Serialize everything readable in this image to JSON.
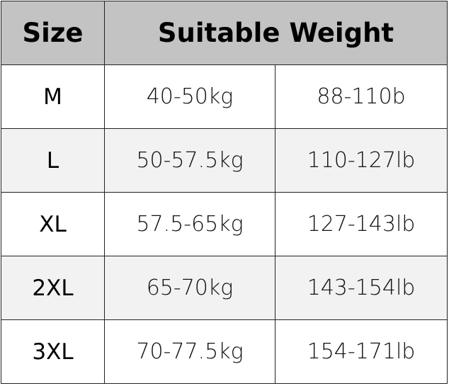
{
  "header": {
    "size": "Size",
    "weight": "Suitable Weight"
  },
  "rows": [
    {
      "size": "M",
      "kg": "40-50kg",
      "lb": "88-110b"
    },
    {
      "size": "L",
      "kg": "50-57.5kg",
      "lb": "110-127lb"
    },
    {
      "size": "XL",
      "kg": "57.5-65kg",
      "lb": "127-143lb"
    },
    {
      "size": "2XL",
      "kg": "65-70kg",
      "lb": "143-154lb"
    },
    {
      "size": "3XL",
      "kg": "70-77.5kg",
      "lb": "154-171lb"
    }
  ],
  "colors": {
    "header_bg": "#c3c3c3",
    "alt_row_bg": "#f2f2f2"
  }
}
